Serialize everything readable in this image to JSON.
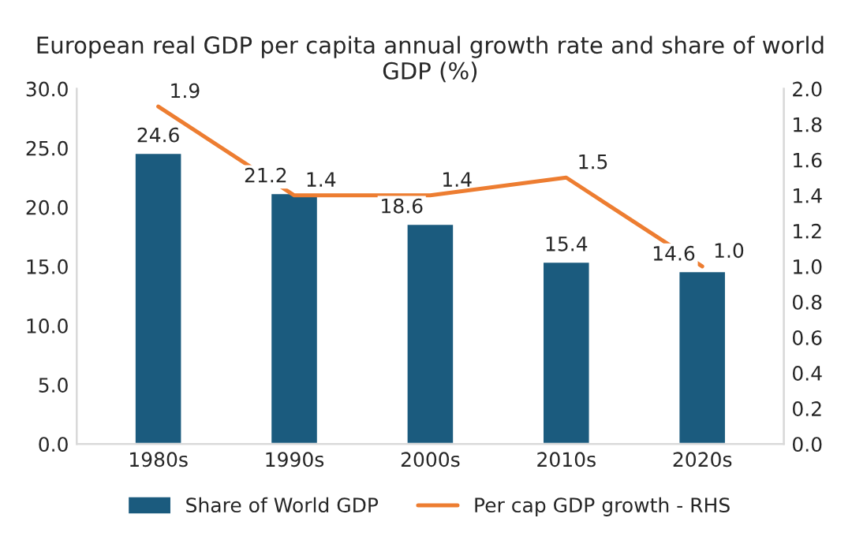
{
  "chart_data": {
    "type": "bar",
    "title": "European real GDP per capita annual growth rate and share of world GDP (%)",
    "categories": [
      "1980s",
      "1990s",
      "2000s",
      "2010s",
      "2020s"
    ],
    "series": [
      {
        "name": "Share of World GDP",
        "color": "#1b5b7e",
        "values": [
          24.6,
          21.2,
          18.6,
          15.4,
          14.6
        ]
      },
      {
        "name": "Per cap GDP growth - RHS",
        "type": "line",
        "axis": "y2",
        "color": "#ed7d31",
        "values": [
          1.9,
          1.4,
          1.4,
          1.5,
          1.0
        ],
        "value_labels": [
          "1.9",
          "1.4",
          "1.4",
          "1.5",
          "1.0"
        ]
      }
    ],
    "ylim": [
      0,
      30
    ],
    "yticks": [
      {
        "value": 0,
        "label": "0.0"
      },
      {
        "value": 5,
        "label": "5.0"
      },
      {
        "value": 10,
        "label": "10.0"
      },
      {
        "value": 15,
        "label": "15.0"
      },
      {
        "value": 20,
        "label": "20.0"
      },
      {
        "value": 25,
        "label": "25.0"
      },
      {
        "value": 30,
        "label": "30.0"
      }
    ],
    "y2lim": [
      0,
      2
    ],
    "y2ticks": [
      {
        "value": 0,
        "label": "0.0"
      },
      {
        "value": 0.2,
        "label": "0.2"
      },
      {
        "value": 0.4,
        "label": "0.4"
      },
      {
        "value": 0.6,
        "label": "0.6"
      },
      {
        "value": 0.8,
        "label": "0.8"
      },
      {
        "value": 1.0,
        "label": "1.0"
      },
      {
        "value": 1.2,
        "label": "1.2"
      },
      {
        "value": 1.4,
        "label": "1.4"
      },
      {
        "value": 1.6,
        "label": "1.6"
      },
      {
        "value": 1.8,
        "label": "1.8"
      },
      {
        "value": 2.0,
        "label": "2.0"
      }
    ],
    "data_labels": true,
    "grid": false,
    "legend": "bottom",
    "marker": "none",
    "line_style": "solid"
  }
}
